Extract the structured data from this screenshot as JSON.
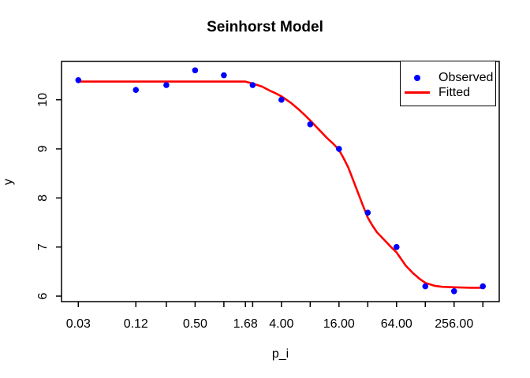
{
  "chart_data": {
    "type": "scatter",
    "title": "Seinhorst Model",
    "xlabel": "p_i",
    "ylabel": "y",
    "x_scale": "log10",
    "grid": false,
    "x_ticks": [
      {
        "v": 0.03,
        "label": "0.03"
      },
      {
        "v": 0.12,
        "label": "0.12"
      },
      {
        "v": 0.25,
        "label": ""
      },
      {
        "v": 0.5,
        "label": "0.50"
      },
      {
        "v": 1,
        "label": ""
      },
      {
        "v": 1.68,
        "label": "1.68"
      },
      {
        "v": 2,
        "label": ""
      },
      {
        "v": 4,
        "label": "4.00"
      },
      {
        "v": 8,
        "label": ""
      },
      {
        "v": 16,
        "label": "16.00"
      },
      {
        "v": 32,
        "label": ""
      },
      {
        "v": 64,
        "label": "64.00"
      },
      {
        "v": 128,
        "label": ""
      },
      {
        "v": 256,
        "label": "256.00"
      },
      {
        "v": 512,
        "label": ""
      }
    ],
    "y_ticks": [
      {
        "v": 6,
        "label": "6"
      },
      {
        "v": 7,
        "label": "7"
      },
      {
        "v": 8,
        "label": "8"
      },
      {
        "v": 9,
        "label": "9"
      },
      {
        "v": 10,
        "label": "10"
      }
    ],
    "xlim": [
      0.026,
      760
    ],
    "ylim": [
      5.89,
      10.78
    ],
    "series": [
      {
        "name": "Observed",
        "kind": "points",
        "color": "#0000ff",
        "x": [
          0.03,
          0.12,
          0.25,
          0.5,
          1,
          2,
          4,
          8,
          16,
          32,
          64,
          128,
          256,
          512
        ],
        "y": [
          10.4,
          10.2,
          10.3,
          10.6,
          10.5,
          10.3,
          10.0,
          9.5,
          9.0,
          7.7,
          7.0,
          6.2,
          6.1,
          6.2
        ]
      },
      {
        "name": "Fitted",
        "kind": "line",
        "color": "#ff0000",
        "points": [
          [
            0.03,
            10.37
          ],
          [
            0.5,
            10.37
          ],
          [
            1.0,
            10.37
          ],
          [
            1.68,
            10.37
          ],
          [
            2,
            10.33
          ],
          [
            2.5,
            10.27
          ],
          [
            3,
            10.19
          ],
          [
            3.5,
            10.13
          ],
          [
            4,
            10.07
          ],
          [
            5,
            9.94
          ],
          [
            6,
            9.81
          ],
          [
            7,
            9.69
          ],
          [
            8,
            9.58
          ],
          [
            10,
            9.38
          ],
          [
            12,
            9.22
          ],
          [
            14,
            9.1
          ],
          [
            16,
            8.98
          ],
          [
            18,
            8.8
          ],
          [
            20,
            8.62
          ],
          [
            24,
            8.22
          ],
          [
            28,
            7.88
          ],
          [
            32,
            7.6
          ],
          [
            36,
            7.43
          ],
          [
            40,
            7.3
          ],
          [
            48,
            7.14
          ],
          [
            56,
            7.0
          ],
          [
            64,
            6.89
          ],
          [
            80,
            6.62
          ],
          [
            96,
            6.46
          ],
          [
            112,
            6.35
          ],
          [
            128,
            6.27
          ],
          [
            160,
            6.21
          ],
          [
            192,
            6.19
          ],
          [
            256,
            6.18
          ],
          [
            384,
            6.17
          ],
          [
            512,
            6.17
          ]
        ]
      }
    ],
    "legend": {
      "position": "topright",
      "entries": [
        {
          "label": "Observed",
          "marker": "point",
          "color": "#0000ff"
        },
        {
          "label": "Fitted",
          "marker": "line",
          "color": "#ff0000"
        }
      ]
    }
  },
  "colors": {
    "observed": "#0000ff",
    "fitted": "#ff0000",
    "axis": "#000000",
    "background": "#ffffff"
  }
}
